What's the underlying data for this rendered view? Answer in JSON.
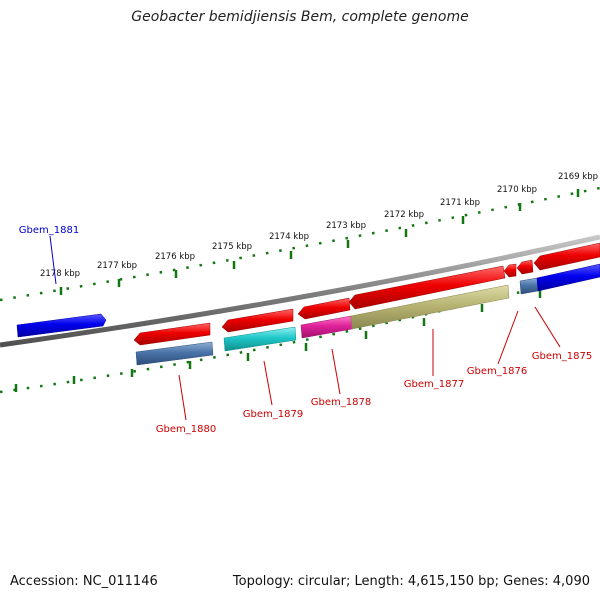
{
  "title": "Geobacter bemidjiensis Bem, complete genome",
  "footer": {
    "accession": "Accession: NC_011146",
    "topology": "Topology: circular; Length: 4,615,150 bp; Genes: 4,090"
  },
  "scale": {
    "labels": [
      "2169 kbp",
      "2170 kbp",
      "2171 kbp",
      "2172 kbp",
      "2173 kbp",
      "2174 kbp",
      "2175 kbp",
      "2176 kbp",
      "2177 kbp",
      "2178 kbp"
    ]
  },
  "genes": [
    {
      "label": "Gbem_1881",
      "color": "#0000cc"
    },
    {
      "label": "Gbem_1880",
      "color": "#cc0000"
    },
    {
      "label": "Gbem_1879",
      "color": "#cc0000"
    },
    {
      "label": "Gbem_1878",
      "color": "#cc0000"
    },
    {
      "label": "Gbem_1877",
      "color": "#cc0000"
    },
    {
      "label": "Gbem_1876",
      "color": "#cc0000"
    },
    {
      "label": "Gbem_1875",
      "color": "#cc0000"
    }
  ],
  "colors": {
    "backbone": "#7f7f7f",
    "tick": "#117711",
    "red_feature": "#ee0000",
    "blue_feature": "#0000ee",
    "steelblue": "#4a74a8",
    "cyan": "#1fc8c8",
    "magenta": "#e0219a",
    "khaki": "#b8b574"
  }
}
